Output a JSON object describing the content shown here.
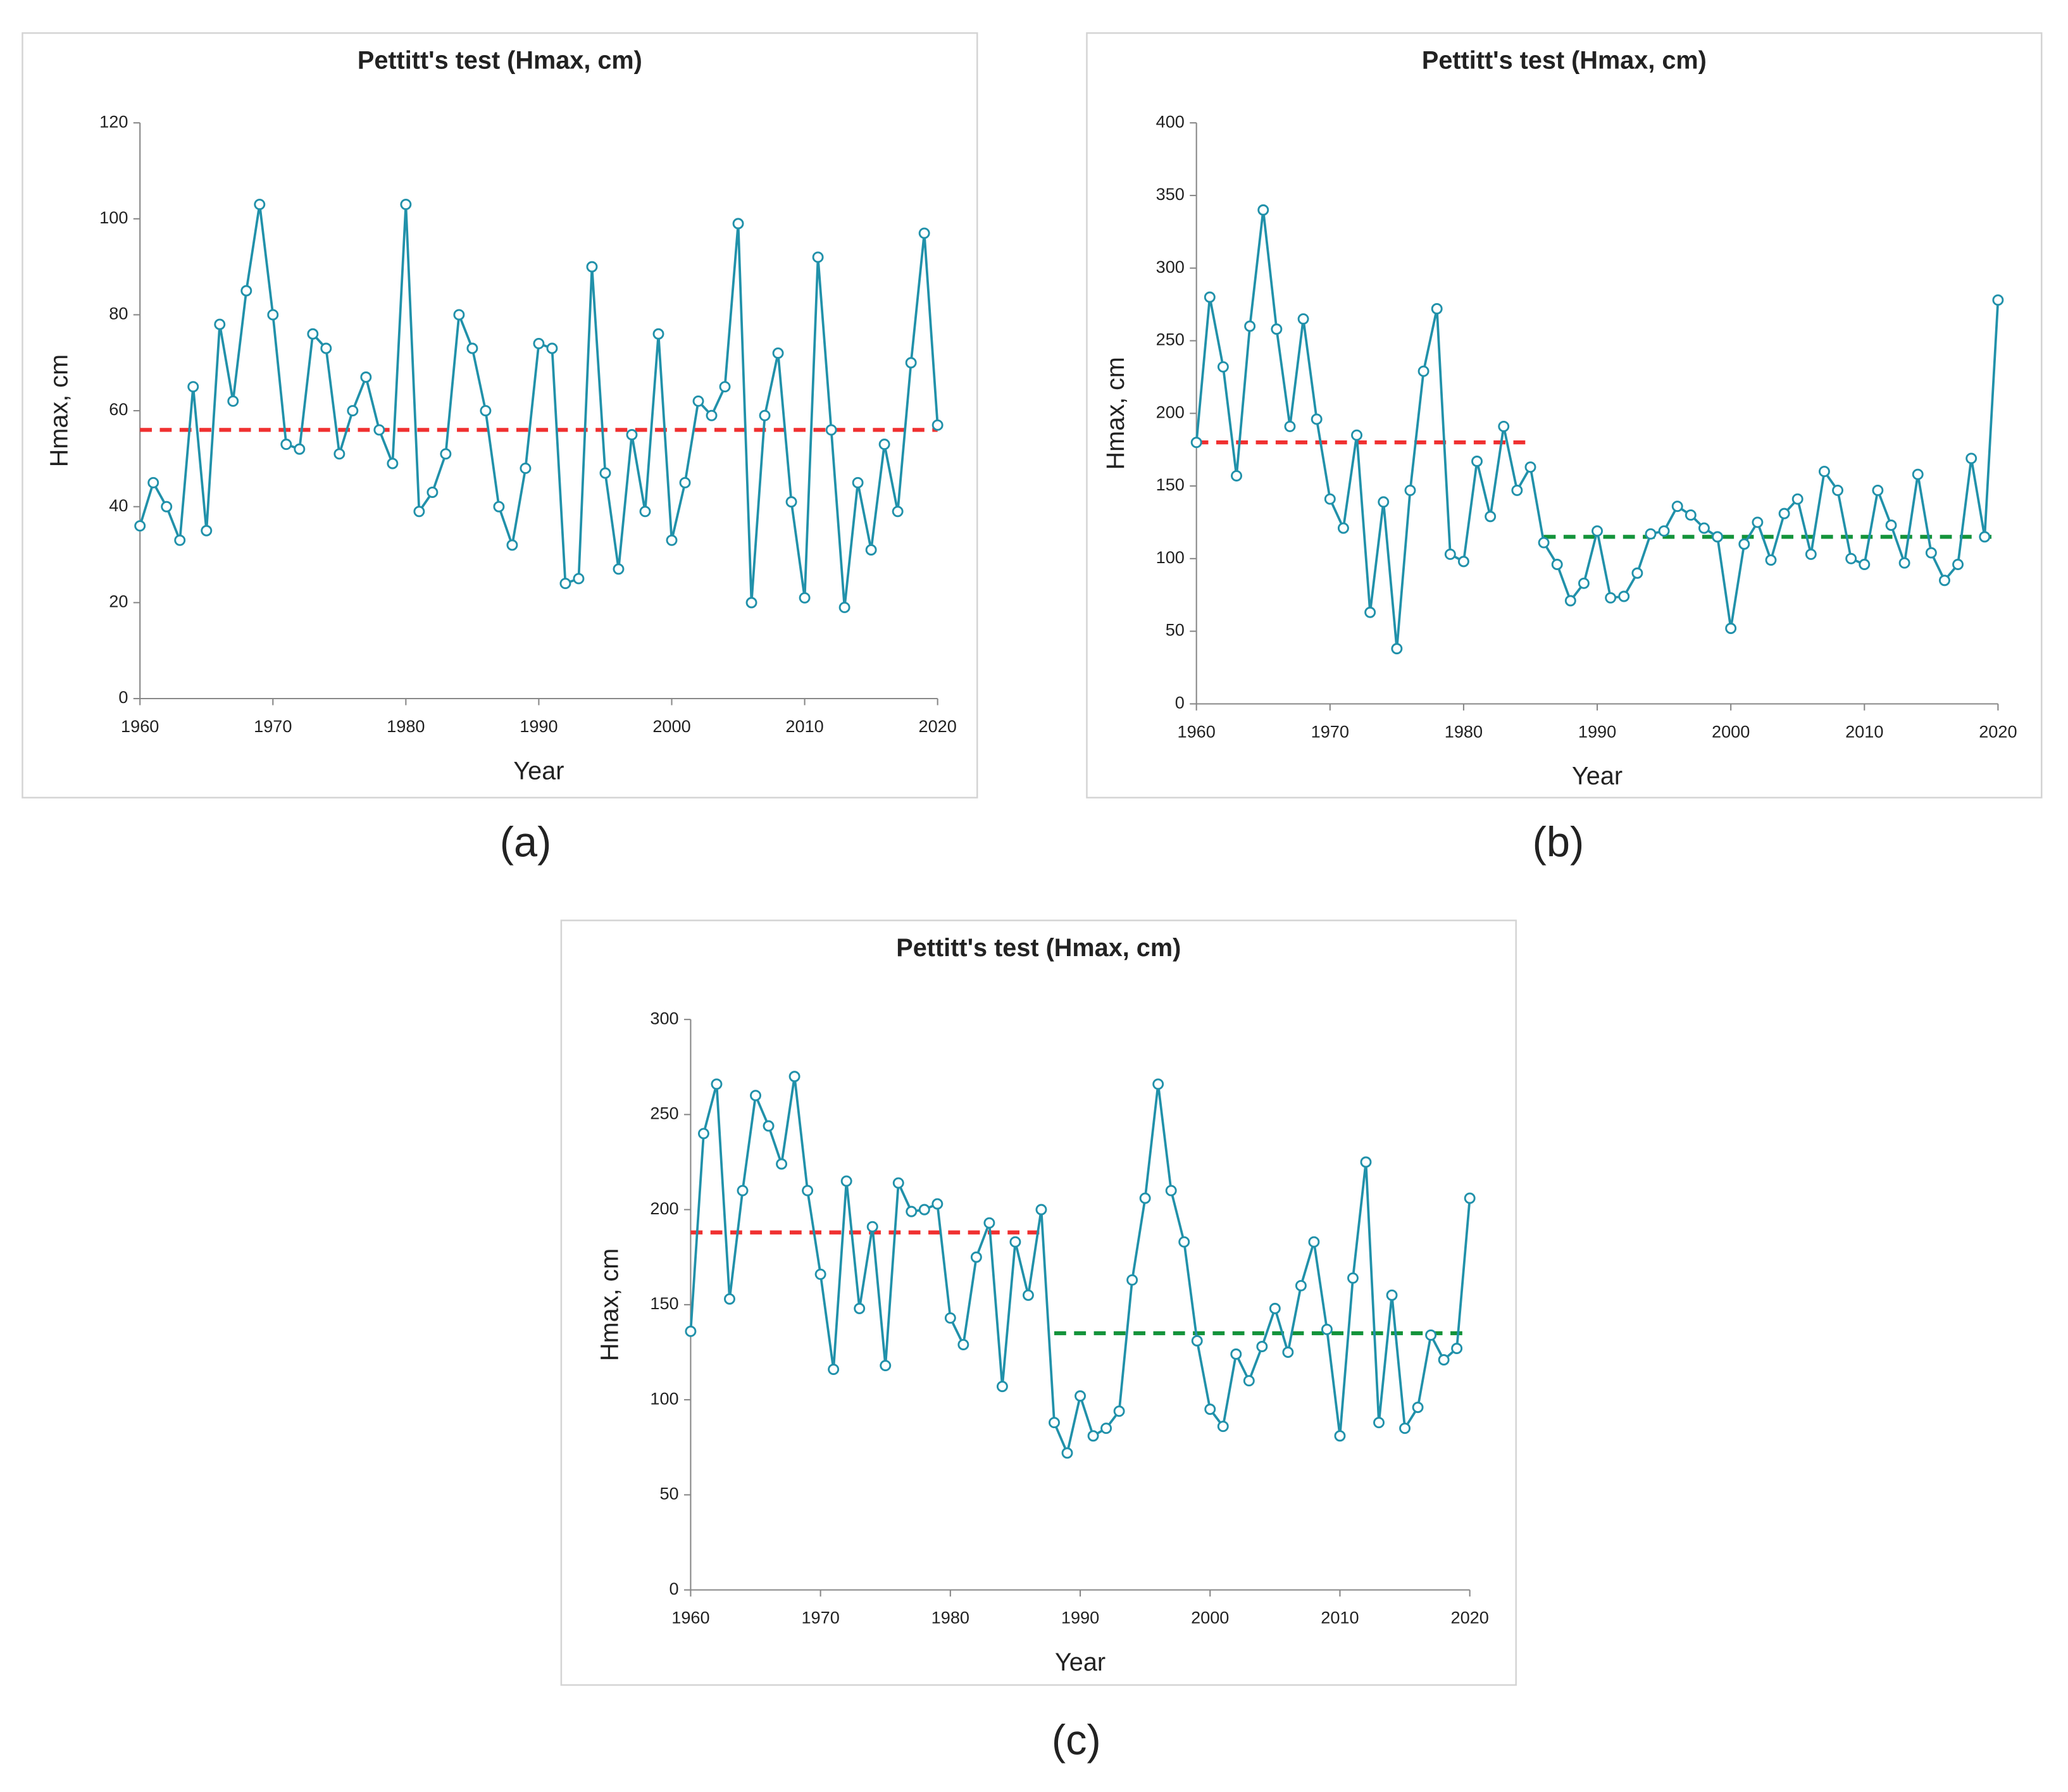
{
  "chart_data": [
    {
      "type": "line",
      "panel_label": "(a)",
      "title": "Pettitt's test (Hmax, cm)",
      "x_label": "Year",
      "y_label": "Hmax, cm",
      "x": [
        1960,
        1961,
        1962,
        1963,
        1964,
        1965,
        1966,
        1967,
        1968,
        1969,
        1970,
        1971,
        1972,
        1973,
        1974,
        1975,
        1976,
        1977,
        1978,
        1979,
        1980,
        1981,
        1982,
        1983,
        1984,
        1985,
        1986,
        1987,
        1988,
        1989,
        1990,
        1991,
        1992,
        1993,
        1994,
        1995,
        1996,
        1997,
        1998,
        1999,
        2000,
        2001,
        2002,
        2003,
        2004,
        2005,
        2006,
        2007,
        2008,
        2009,
        2010,
        2011,
        2012,
        2013,
        2014,
        2015,
        2016,
        2017,
        2018,
        2019,
        2020
      ],
      "series": [
        {
          "color": "#2191aa",
          "values": [
            36,
            45,
            40,
            33,
            65,
            35,
            78,
            62,
            85,
            103,
            80,
            53,
            52,
            76,
            73,
            51,
            60,
            67,
            56,
            49,
            103,
            39,
            43,
            51,
            80,
            73,
            60,
            40,
            32,
            48,
            74,
            73,
            24,
            25,
            90,
            47,
            27,
            55,
            39,
            76,
            33,
            45,
            62,
            59,
            65,
            99,
            20,
            59,
            72,
            41,
            21,
            92,
            56,
            19,
            45,
            31,
            53,
            39,
            70,
            97,
            57
          ]
        }
      ],
      "mean_lines": [
        {
          "start": 1960,
          "end": 2020,
          "value": 56,
          "color": "#f03030"
        }
      ],
      "xlim": [
        1960,
        2020
      ],
      "xticks": [
        1960,
        1970,
        1980,
        1990,
        2000,
        2010,
        2020
      ],
      "ylim": [
        0,
        120
      ],
      "yticks": [
        0,
        20,
        40,
        60,
        80,
        100,
        120
      ]
    },
    {
      "type": "line",
      "panel_label": "(b)",
      "title": "Pettitt's test (Hmax, cm)",
      "x_label": "Year",
      "y_label": "Hmax, cm",
      "x": [
        1960,
        1961,
        1962,
        1963,
        1964,
        1965,
        1966,
        1967,
        1968,
        1969,
        1970,
        1971,
        1972,
        1973,
        1974,
        1975,
        1976,
        1977,
        1978,
        1979,
        1980,
        1981,
        1982,
        1983,
        1984,
        1985,
        1986,
        1987,
        1988,
        1989,
        1990,
        1991,
        1992,
        1993,
        1994,
        1995,
        1996,
        1997,
        1998,
        1999,
        2000,
        2001,
        2002,
        2003,
        2004,
        2005,
        2006,
        2007,
        2008,
        2009,
        2010,
        2011,
        2012,
        2013,
        2014,
        2015,
        2016,
        2017,
        2018,
        2019,
        2020
      ],
      "series": [
        {
          "color": "#2191aa",
          "values": [
            180,
            280,
            232,
            157,
            260,
            340,
            258,
            191,
            265,
            196,
            141,
            121,
            185,
            63,
            139,
            38,
            147,
            229,
            272,
            103,
            98,
            167,
            129,
            191,
            147,
            163,
            111,
            96,
            71,
            83,
            119,
            73,
            74,
            90,
            117,
            119,
            136,
            130,
            121,
            115,
            52,
            110,
            125,
            99,
            131,
            141,
            103,
            160,
            147,
            100,
            96,
            147,
            123,
            97,
            158,
            104,
            85,
            96,
            169,
            115,
            278
          ]
        }
      ],
      "mean_lines": [
        {
          "start": 1960,
          "end": 1985,
          "value": 180,
          "color": "#f03030"
        },
        {
          "start": 1986,
          "end": 2020,
          "value": 115,
          "color": "#13933a"
        }
      ],
      "xlim": [
        1960,
        2020
      ],
      "xticks": [
        1960,
        1970,
        1980,
        1990,
        2000,
        2010,
        2020
      ],
      "ylim": [
        0,
        400
      ],
      "yticks": [
        0,
        50,
        100,
        150,
        200,
        250,
        300,
        350,
        400
      ]
    },
    {
      "type": "line",
      "panel_label": "(c)",
      "title": "Pettitt's test (Hmax, cm)",
      "x_label": "Year",
      "y_label": "Hmax, cm",
      "x": [
        1960,
        1961,
        1962,
        1963,
        1964,
        1965,
        1966,
        1967,
        1968,
        1969,
        1970,
        1971,
        1972,
        1973,
        1974,
        1975,
        1976,
        1977,
        1978,
        1979,
        1980,
        1981,
        1982,
        1983,
        1984,
        1985,
        1986,
        1987,
        1988,
        1989,
        1990,
        1991,
        1992,
        1993,
        1994,
        1995,
        1996,
        1997,
        1998,
        1999,
        2000,
        2001,
        2002,
        2003,
        2004,
        2005,
        2006,
        2007,
        2008,
        2009,
        2010,
        2011,
        2012,
        2013,
        2014,
        2015,
        2016,
        2017,
        2018,
        2019,
        2020
      ],
      "series": [
        {
          "color": "#2191aa",
          "values": [
            136,
            240,
            266,
            153,
            210,
            260,
            244,
            224,
            270,
            210,
            166,
            116,
            215,
            148,
            191,
            118,
            214,
            199,
            200,
            203,
            143,
            129,
            175,
            193,
            107,
            183,
            155,
            200,
            88,
            72,
            102,
            81,
            85,
            94,
            163,
            206,
            266,
            210,
            183,
            131,
            95,
            86,
            124,
            110,
            128,
            148,
            125,
            160,
            183,
            137,
            81,
            164,
            225,
            88,
            155,
            85,
            96,
            134,
            121,
            127,
            206
          ]
        }
      ],
      "mean_lines": [
        {
          "start": 1960,
          "end": 1987,
          "value": 188,
          "color": "#f03030"
        },
        {
          "start": 1988,
          "end": 2020,
          "value": 135,
          "color": "#13933a"
        }
      ],
      "xlim": [
        1960,
        2020
      ],
      "xticks": [
        1960,
        1970,
        1980,
        1990,
        2000,
        2010,
        2020
      ],
      "ylim": [
        0,
        300
      ],
      "yticks": [
        0,
        50,
        100,
        150,
        200,
        250,
        300
      ]
    }
  ]
}
